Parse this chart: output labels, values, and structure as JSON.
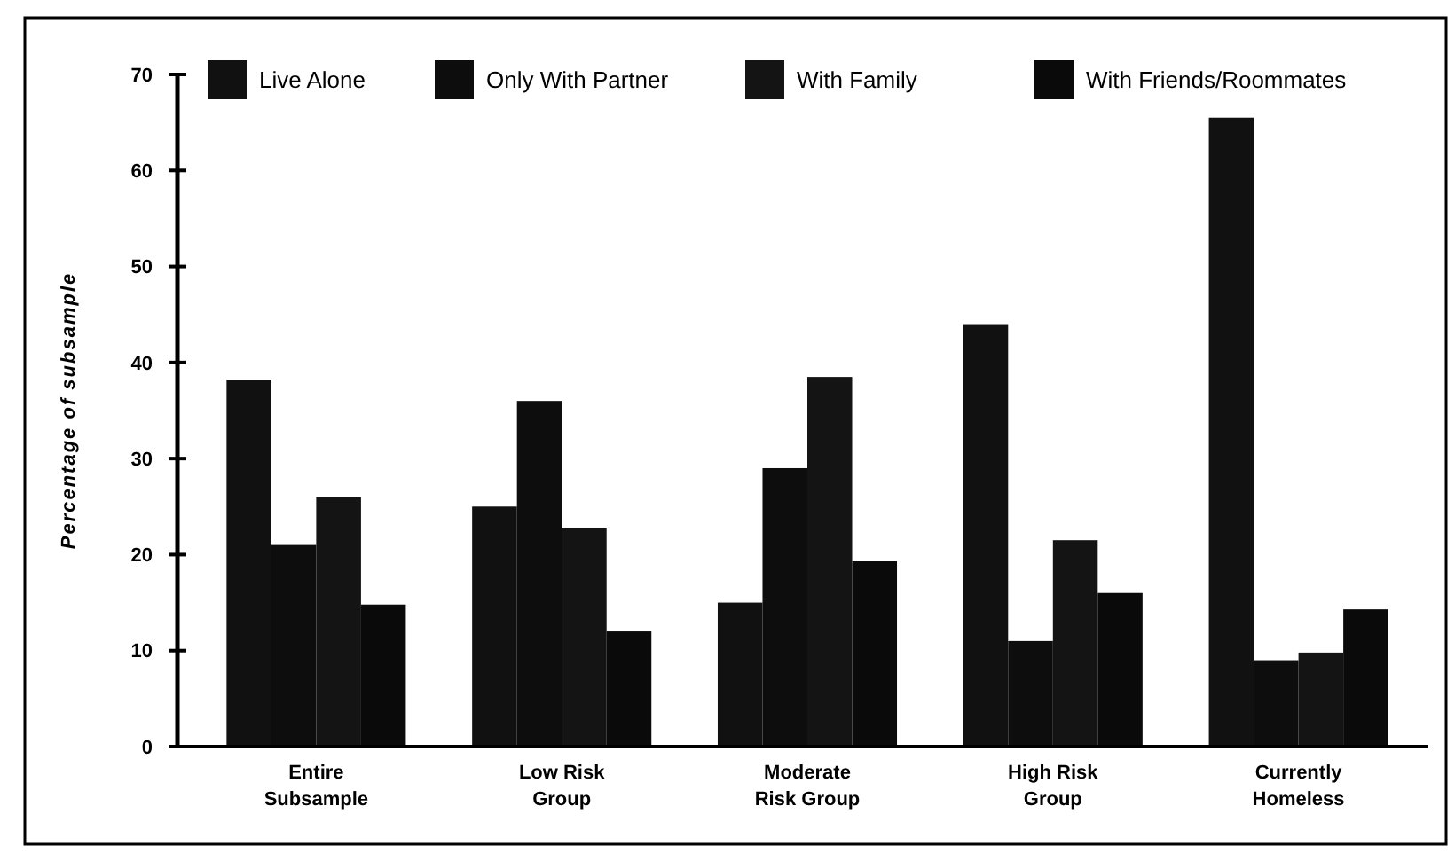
{
  "chart_data": {
    "type": "bar",
    "ylabel": "Percentage of subsample",
    "categories": [
      "Entire Subsample",
      "Low Risk Group",
      "Moderate Risk Group",
      "High Risk Group",
      "Currently Homeless"
    ],
    "series": [
      {
        "name": "Live Alone",
        "color": "#111111",
        "values": [
          38.2,
          25,
          15,
          44,
          65.5
        ]
      },
      {
        "name": "Only With Partner",
        "color": "#0d0d0d",
        "values": [
          21,
          36,
          29,
          11,
          9
        ]
      },
      {
        "name": "With Family",
        "color": "#141414",
        "values": [
          26,
          22.8,
          38.5,
          21.5,
          9.8
        ]
      },
      {
        "name": "With Friends/Roommates",
        "color": "#0a0a0a",
        "values": [
          14.8,
          12,
          19.3,
          16,
          14.3
        ]
      }
    ],
    "ylim": [
      0,
      70
    ],
    "yticks": [
      0,
      10,
      20,
      30,
      40,
      50,
      60,
      70
    ],
    "grid": false,
    "legend": "top"
  }
}
